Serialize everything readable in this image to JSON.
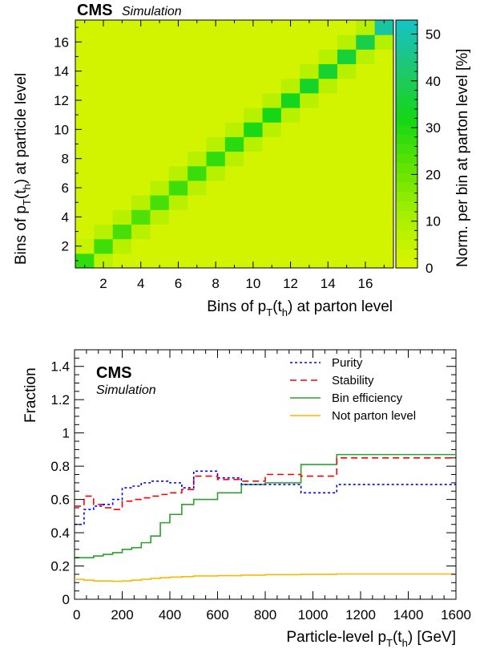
{
  "chart_data": [
    {
      "type": "heatmap",
      "experiment": "CMS",
      "tag": "Simulation",
      "xlabel": "Bins of p_T(t_h) at parton level",
      "ylabel": "Bins of p_T(t_h) at particle level",
      "zlabel": "Norm. per bin at parton level [%]",
      "n_bins": 17,
      "x_ticks": [
        "2",
        "4",
        "6",
        "8",
        "10",
        "12",
        "14",
        "16"
      ],
      "y_ticks": [
        "2",
        "4",
        "6",
        "8",
        "10",
        "12",
        "14",
        "16"
      ],
      "z_ticks": [
        "0",
        "10",
        "20",
        "30",
        "40",
        "50"
      ],
      "zlim": [
        0,
        53
      ],
      "diagonal": [
        28,
        26,
        25,
        24,
        25,
        26,
        27,
        28,
        29,
        31,
        32,
        33,
        34,
        35,
        36,
        38,
        48
      ],
      "off_diagonal": [
        {
          "x": 2,
          "y": 1,
          "v": 7
        },
        {
          "x": 1,
          "y": 2,
          "v": 5
        },
        {
          "x": 3,
          "y": 2,
          "v": 8
        },
        {
          "x": 2,
          "y": 3,
          "v": 8
        },
        {
          "x": 4,
          "y": 3,
          "v": 8
        },
        {
          "x": 3,
          "y": 4,
          "v": 8
        },
        {
          "x": 5,
          "y": 4,
          "v": 8
        },
        {
          "x": 4,
          "y": 5,
          "v": 8
        },
        {
          "x": 6,
          "y": 5,
          "v": 8
        },
        {
          "x": 5,
          "y": 6,
          "v": 8
        },
        {
          "x": 7,
          "y": 6,
          "v": 8
        },
        {
          "x": 6,
          "y": 7,
          "v": 8
        },
        {
          "x": 8,
          "y": 7,
          "v": 8
        },
        {
          "x": 7,
          "y": 8,
          "v": 8
        },
        {
          "x": 9,
          "y": 8,
          "v": 8
        },
        {
          "x": 8,
          "y": 9,
          "v": 8
        },
        {
          "x": 10,
          "y": 9,
          "v": 8
        },
        {
          "x": 9,
          "y": 10,
          "v": 8
        },
        {
          "x": 11,
          "y": 10,
          "v": 8
        },
        {
          "x": 10,
          "y": 11,
          "v": 8
        },
        {
          "x": 12,
          "y": 11,
          "v": 8
        },
        {
          "x": 11,
          "y": 12,
          "v": 8
        },
        {
          "x": 13,
          "y": 12,
          "v": 8
        },
        {
          "x": 12,
          "y": 13,
          "v": 8
        },
        {
          "x": 14,
          "y": 13,
          "v": 8
        },
        {
          "x": 13,
          "y": 14,
          "v": 8
        },
        {
          "x": 15,
          "y": 14,
          "v": 8
        },
        {
          "x": 14,
          "y": 15,
          "v": 8
        },
        {
          "x": 16,
          "y": 15,
          "v": 8
        },
        {
          "x": 15,
          "y": 16,
          "v": 8
        },
        {
          "x": 17,
          "y": 16,
          "v": 9
        },
        {
          "x": 16,
          "y": 17,
          "v": 8
        }
      ],
      "background_value": 2
    },
    {
      "type": "line",
      "experiment": "CMS",
      "tag": "Simulation",
      "xlabel": "Particle-level p_T(t_h) [GeV]",
      "ylabel": "Fraction",
      "xlim": [
        0,
        1600
      ],
      "ylim": [
        0,
        1.5
      ],
      "x_ticks": [
        "0",
        "200",
        "400",
        "600",
        "800",
        "1000",
        "1200",
        "1400",
        "1600"
      ],
      "y_ticks": [
        "0",
        "0.2",
        "0.4",
        "0.6",
        "0.8",
        "1",
        "1.2",
        "1.4"
      ],
      "bin_edges": [
        0,
        40,
        80,
        120,
        160,
        200,
        240,
        280,
        320,
        360,
        400,
        450,
        500,
        600,
        700,
        800,
        950,
        1100,
        1600
      ],
      "series": [
        {
          "name": "Purity",
          "color": "#0000ff",
          "dash": "3,3",
          "values": [
            0.45,
            0.54,
            0.56,
            0.57,
            0.6,
            0.67,
            0.68,
            0.7,
            0.71,
            0.71,
            0.7,
            0.67,
            0.77,
            0.73,
            0.69,
            0.69,
            0.64,
            0.69
          ]
        },
        {
          "name": "Stability",
          "color": "#ff0000",
          "dash": "8,5",
          "values": [
            0.56,
            0.62,
            0.57,
            0.55,
            0.54,
            0.59,
            0.6,
            0.61,
            0.62,
            0.63,
            0.64,
            0.66,
            0.74,
            0.72,
            0.71,
            0.75,
            0.74,
            0.85
          ]
        },
        {
          "name": "Bin efficiency",
          "color": "#2ca02c",
          "dash": "",
          "values": [
            0.25,
            0.25,
            0.26,
            0.27,
            0.28,
            0.3,
            0.31,
            0.34,
            0.38,
            0.46,
            0.51,
            0.57,
            0.6,
            0.64,
            0.69,
            0.7,
            0.81,
            0.87
          ]
        },
        {
          "name": "Not parton level",
          "color": "#ffb600",
          "dash": "",
          "values": [
            0.12,
            0.115,
            0.11,
            0.11,
            0.108,
            0.11,
            0.115,
            0.12,
            0.125,
            0.13,
            0.133,
            0.136,
            0.14,
            0.142,
            0.145,
            0.148,
            0.15,
            0.152
          ]
        }
      ]
    }
  ]
}
